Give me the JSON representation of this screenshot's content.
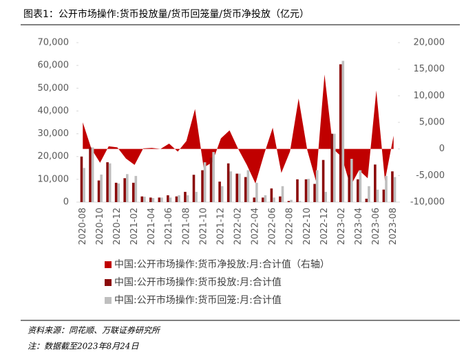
{
  "chart_data": {
    "type": "bar_area",
    "title": "图表1：公开市场操作:货币投放量/货币回笼量/货币净投放（亿元）",
    "source": "资料来源：同花顺、万联证券研究所",
    "note": "注：数据截至2023年8月24日",
    "categories": [
      "2020-08",
      null,
      "2020-10",
      null,
      "2020-12",
      null,
      "2021-02",
      null,
      "2021-04",
      null,
      "2021-06",
      null,
      "2021-08",
      null,
      "2021-10",
      null,
      "2021-12",
      null,
      "2022-02",
      null,
      "2022-04",
      null,
      "2022-06",
      null,
      "2022-08",
      null,
      "2022-10",
      null,
      "2022-12",
      null,
      "2023-02",
      null,
      "2023-04",
      null,
      "2023-06",
      null,
      "2023-08"
    ],
    "series": [
      {
        "name": "中国:公开市场操作:货币净投放:月:合计值（右轴）",
        "color": "#c00000",
        "axis": "y2",
        "kind": "area",
        "values": [
          5000,
          0,
          -2600,
          500,
          300,
          -1800,
          -3000,
          100,
          200,
          0,
          1000,
          -500,
          1500,
          7500,
          -3500,
          -2500,
          2000,
          3500,
          0,
          -3000,
          -6500,
          -1000,
          4000,
          -4500,
          -500,
          9500,
          -200,
          -6000,
          14000,
          0,
          -1500,
          -7000,
          -4000,
          -5500,
          11000,
          -6000,
          2500
        ]
      },
      {
        "name": "中国:公开市场操作:货币投放:月:合计值",
        "color": "#8b0a0a",
        "kind": "bar",
        "values": [
          20000,
          24000,
          9500,
          17500,
          8500,
          10500,
          8500,
          2500,
          2000,
          2000,
          3000,
          2500,
          4500,
          12000,
          14000,
          19500,
          9000,
          17000,
          12500,
          11000,
          2000,
          2000,
          6000,
          2500,
          500,
          10000,
          10000,
          8000,
          18500,
          30000,
          60500,
          12000,
          10000,
          1500,
          16500,
          5500,
          13500
        ]
      },
      {
        "name": "中国:公开市场操作:货币回笼:月:合计值",
        "color": "#bfbfbf",
        "kind": "bar",
        "values": [
          15000,
          24000,
          12100,
          17000,
          8200,
          12300,
          11500,
          2400,
          1800,
          2000,
          2000,
          3000,
          3000,
          4500,
          17500,
          22000,
          7000,
          13500,
          12500,
          14000,
          8500,
          3000,
          2000,
          7000,
          1000,
          500,
          10200,
          14000,
          4500,
          30000,
          62000,
          19000,
          14000,
          7000,
          5500,
          11500,
          11000
        ]
      }
    ],
    "ylim": [
      0,
      70000
    ],
    "yticks": [
      0,
      {
        "value": 10000,
        "label": "10,000"
      },
      {
        "value": 20000,
        "label": "20,000"
      },
      {
        "value": 30000,
        "label": "30,000"
      },
      {
        "value": 40000,
        "label": "40,000"
      },
      {
        "value": 50000,
        "label": "50,000"
      },
      {
        "value": 60000,
        "label": "60,000"
      },
      {
        "value": 70000,
        "label": "70,000"
      }
    ],
    "y2lim": [
      -10000,
      20000
    ],
    "y2ticks": [
      {
        "value": -10000,
        "label": "-10,000"
      },
      {
        "value": -5000,
        "label": "-5,000"
      },
      0,
      {
        "value": 5000,
        "label": "5,000"
      },
      {
        "value": 10000,
        "label": "10,000"
      },
      {
        "value": 15000,
        "label": "15,000"
      },
      {
        "value": 20000,
        "label": "20,000"
      }
    ]
  }
}
